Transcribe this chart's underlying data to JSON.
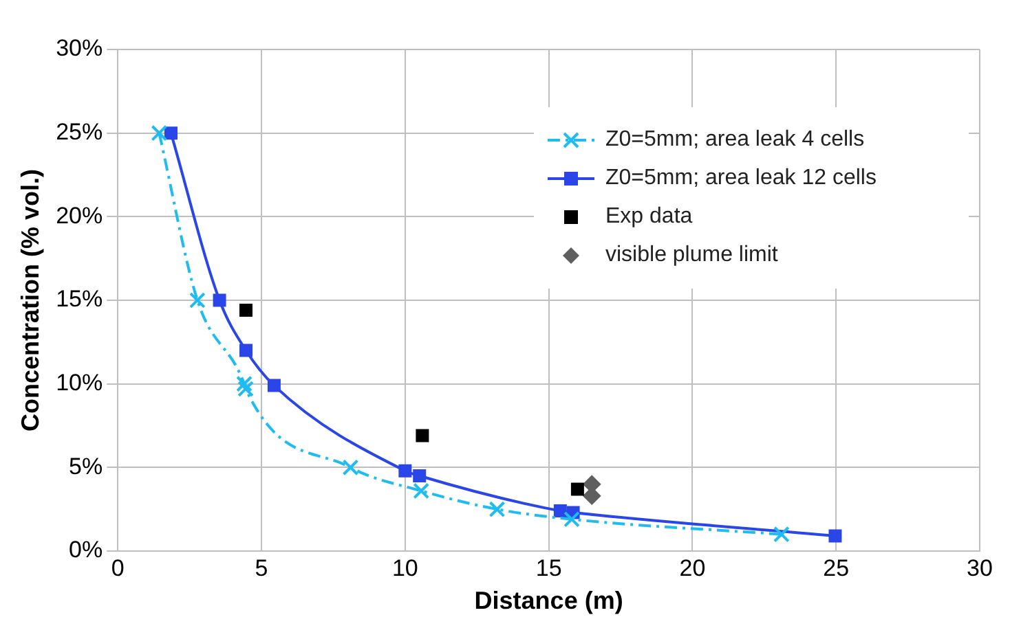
{
  "chart_data": {
    "type": "line",
    "xlabel": "Distance (m)",
    "ylabel": "Concentration (% vol.)",
    "xlim": [
      0,
      30
    ],
    "xticks": [
      0,
      5,
      10,
      15,
      20,
      25,
      30
    ],
    "ylim": [
      0,
      30
    ],
    "yticks": [
      {
        "value": 0,
        "label": "0%"
      },
      {
        "value": 5,
        "label": "5%"
      },
      {
        "value": 10,
        "label": "10%"
      },
      {
        "value": 15,
        "label": "15%"
      },
      {
        "value": 20,
        "label": "20%"
      },
      {
        "value": 25,
        "label": "25%"
      },
      {
        "value": 30,
        "label": "30%"
      }
    ],
    "grid": true,
    "legend": "top right",
    "series": [
      {
        "name": "Z0=5mm; area leak 4 cells",
        "type": "line",
        "color": "#1ebcf0",
        "marker": "cross",
        "line_style": "dashed",
        "x": [
          1.44,
          2.77,
          4.4,
          4.45,
          8.1,
          10.56,
          13.2,
          15.8,
          23.1
        ],
        "values": [
          25,
          15,
          10,
          9.7,
          5,
          3.6,
          2.5,
          1.9,
          1.0
        ]
      },
      {
        "name": "Z0=5mm; area leak 12 cells",
        "type": "line",
        "color": "#2a45e8",
        "marker": "square",
        "line_style": "solid",
        "x": [
          1.85,
          3.54,
          4.46,
          5.44,
          10.0,
          10.5,
          15.4,
          15.85,
          24.97
        ],
        "values": [
          25,
          15,
          12,
          9.9,
          4.8,
          4.5,
          2.4,
          2.3,
          0.9
        ]
      },
      {
        "name": "Exp data",
        "type": "scatter",
        "color": "#000000",
        "marker": "square",
        "x": [
          4.46,
          10.6,
          16.0
        ],
        "values": [
          14.4,
          6.9,
          3.7
        ]
      },
      {
        "name": "visible plume limit",
        "type": "scatter",
        "color": "#5f5f5f",
        "marker": "diamond",
        "x": [
          16.5,
          16.5
        ],
        "values": [
          4.0,
          3.3
        ]
      }
    ]
  }
}
